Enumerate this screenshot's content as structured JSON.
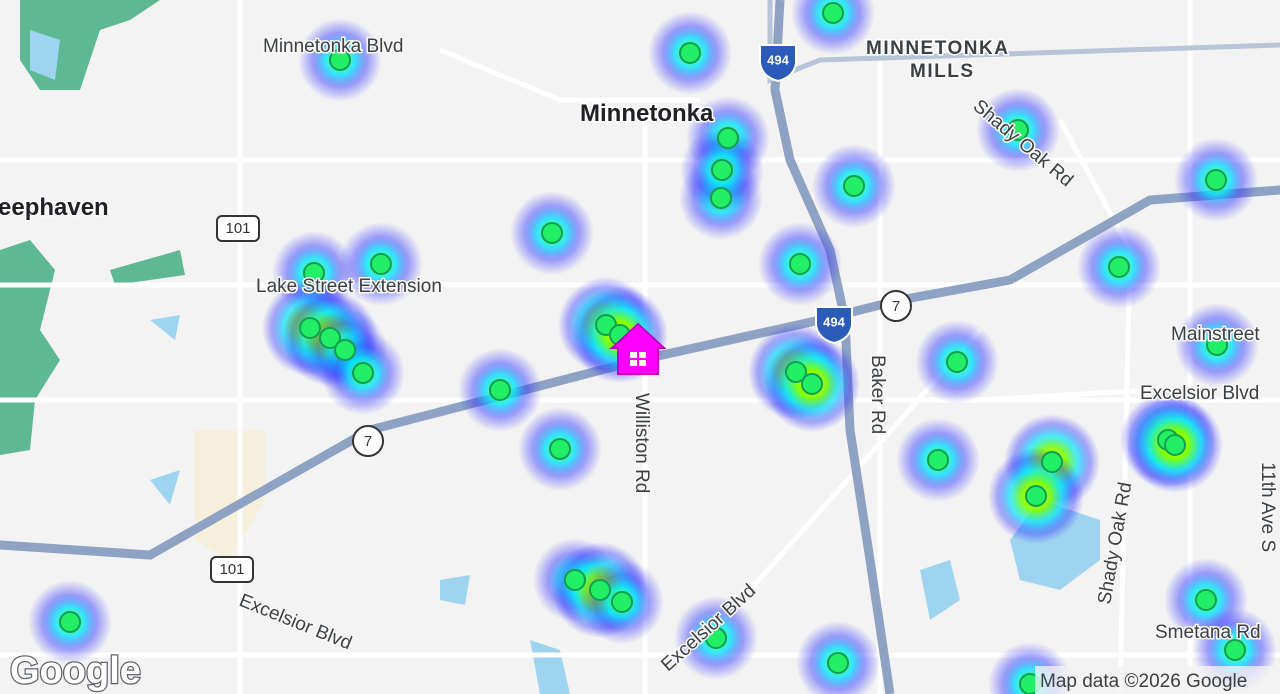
{
  "map": {
    "labels": {
      "minnetonka_blvd": "Minnetonka Blvd",
      "minnetonka": "Minnetonka",
      "minnetonka_mills_1": "MINNETONKA",
      "minnetonka_mills_2": "MILLS",
      "deephaven": "eephaven",
      "lake_street_ext": "Lake Street Extension",
      "shady_oak_top": "Shady Oak Rd",
      "mainstreet": "Mainstreet",
      "excelsior_right": "Excelsior Blvd",
      "baker_rd": "Baker Rd",
      "williston_rd": "Williston Rd",
      "shady_oak_bottom": "Shady Oak Rd",
      "ave_11th": "11th Ave S",
      "smetana_rd": "Smetana Rd",
      "excelsior_left": "Excelsior Blvd",
      "excelsior_mid": "Excelsior Blvd"
    },
    "shields": {
      "i494_top": "494",
      "i494_mid": "494",
      "hwy7_right": "7",
      "hwy7_left": "7",
      "hwy101_top": "101",
      "hwy101_bottom": "101"
    },
    "logo": "Google",
    "attribution": "Map data ©2026 Google"
  }
}
